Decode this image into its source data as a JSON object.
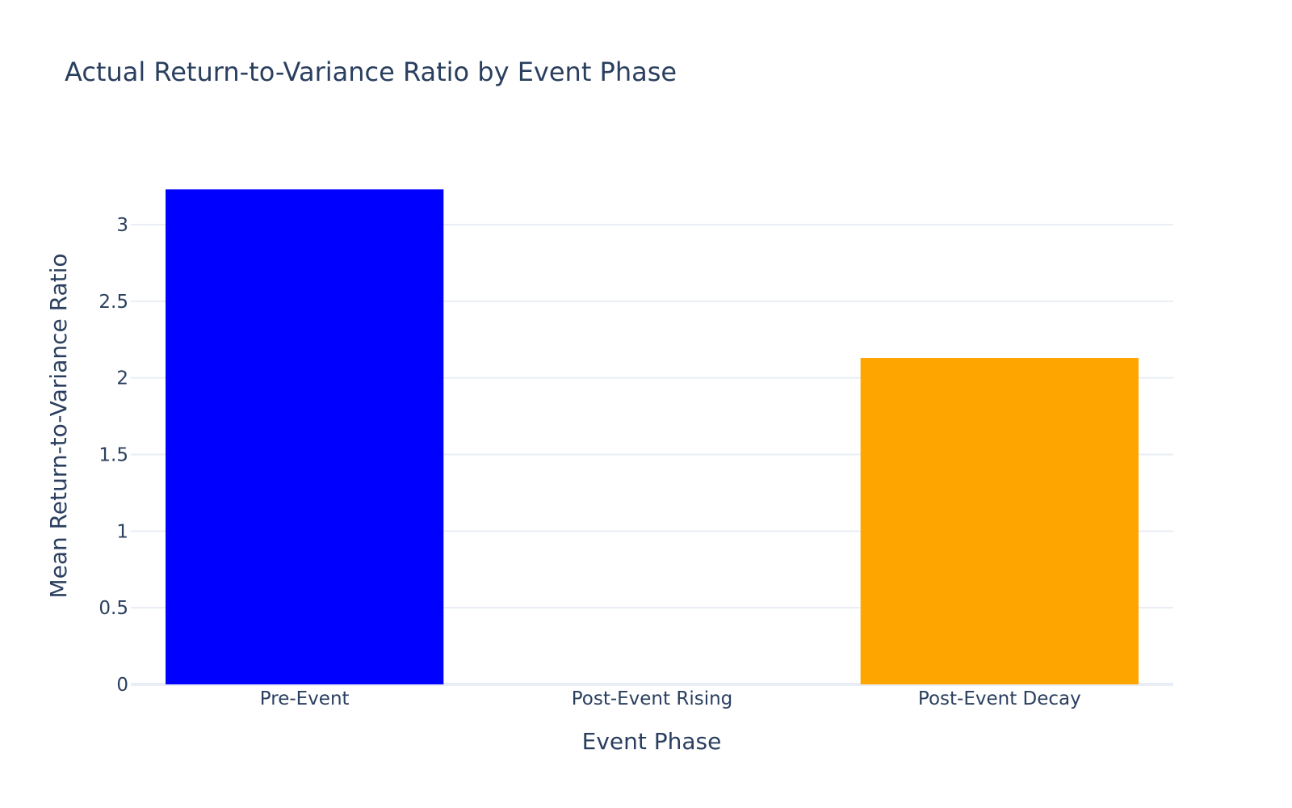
{
  "chart_data": {
    "type": "bar",
    "title": "Actual Return-to-Variance Ratio by Event Phase",
    "xlabel": "Event Phase",
    "ylabel": "Mean Return-to-Variance Ratio",
    "categories": [
      "Pre-Event",
      "Post-Event Rising",
      "Post-Event Decay"
    ],
    "values": [
      3.23,
      0,
      2.13
    ],
    "colors": [
      "#0000ff",
      "#0000ff",
      "#ffa500"
    ],
    "ylim": [
      0,
      3.3
    ],
    "yticks": [
      0,
      0.5,
      1,
      1.5,
      2,
      2.5,
      3
    ],
    "ytick_labels": [
      "0",
      "0.5",
      "1",
      "1.5",
      "2",
      "2.5",
      "3"
    ],
    "grid": true,
    "legend": "none"
  }
}
